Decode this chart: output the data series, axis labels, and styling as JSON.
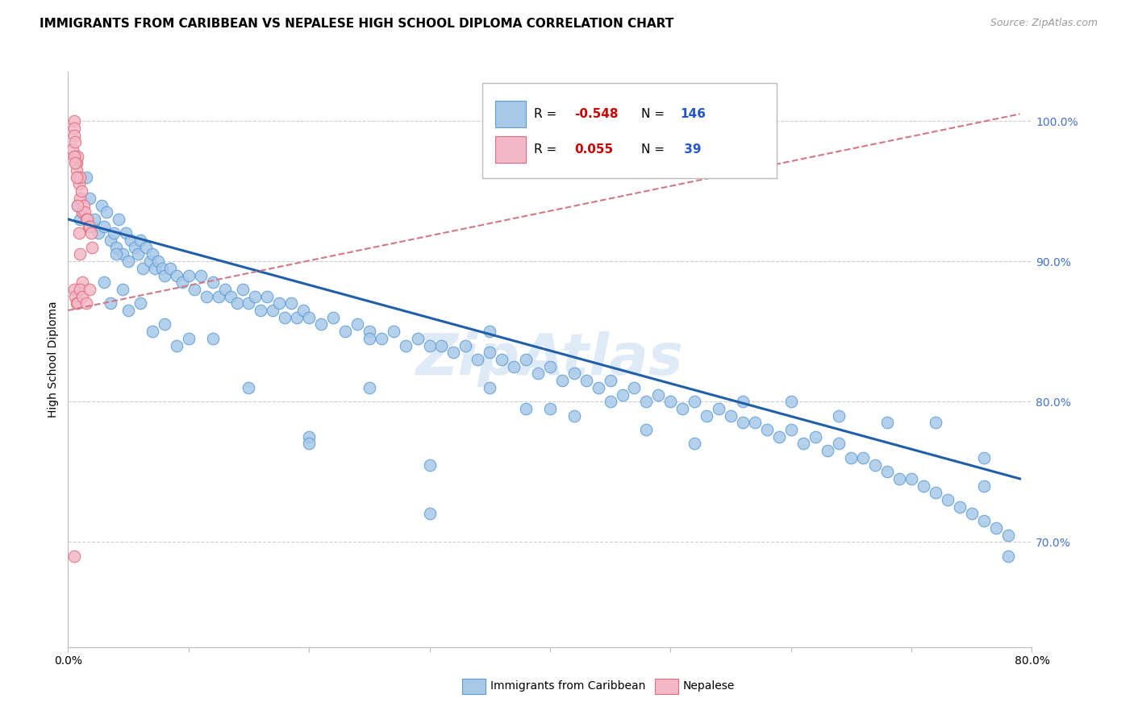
{
  "title": "IMMIGRANTS FROM CARIBBEAN VS NEPALESE HIGH SCHOOL DIPLOMA CORRELATION CHART",
  "source": "Source: ZipAtlas.com",
  "ylabel": "High School Diploma",
  "right_yticks": [
    70.0,
    80.0,
    90.0,
    100.0
  ],
  "xlim": [
    0.0,
    0.8
  ],
  "ylim": [
    0.625,
    1.035
  ],
  "caribbean_color": "#a8c8e8",
  "caribbean_edge": "#5b9bd5",
  "nepalese_color": "#f4b8c8",
  "nepalese_edge": "#e06878",
  "trendline_caribbean_color": "#1f5faa",
  "trendline_nepalese_color": "#d07888",
  "watermark_color": "#c8ddf0",
  "title_fontsize": 11,
  "axis_tick_fontsize": 10,
  "right_tick_color": "#4472c4",
  "grid_color": "#cccccc",
  "caribbean_x": [
    0.008,
    0.01,
    0.012,
    0.015,
    0.018,
    0.02,
    0.022,
    0.025,
    0.028,
    0.03,
    0.032,
    0.035,
    0.038,
    0.04,
    0.042,
    0.045,
    0.048,
    0.05,
    0.052,
    0.055,
    0.058,
    0.06,
    0.062,
    0.065,
    0.068,
    0.07,
    0.072,
    0.075,
    0.078,
    0.08,
    0.085,
    0.09,
    0.095,
    0.1,
    0.105,
    0.11,
    0.115,
    0.12,
    0.125,
    0.13,
    0.135,
    0.14,
    0.145,
    0.15,
    0.155,
    0.16,
    0.165,
    0.17,
    0.175,
    0.18,
    0.185,
    0.19,
    0.195,
    0.2,
    0.21,
    0.22,
    0.23,
    0.24,
    0.25,
    0.26,
    0.27,
    0.28,
    0.29,
    0.3,
    0.31,
    0.32,
    0.33,
    0.34,
    0.35,
    0.36,
    0.37,
    0.38,
    0.39,
    0.4,
    0.41,
    0.42,
    0.43,
    0.44,
    0.45,
    0.46,
    0.47,
    0.48,
    0.49,
    0.5,
    0.51,
    0.52,
    0.53,
    0.54,
    0.55,
    0.56,
    0.57,
    0.58,
    0.59,
    0.6,
    0.61,
    0.62,
    0.63,
    0.64,
    0.65,
    0.66,
    0.67,
    0.68,
    0.69,
    0.7,
    0.71,
    0.72,
    0.73,
    0.74,
    0.75,
    0.76,
    0.77,
    0.78,
    0.03,
    0.035,
    0.04,
    0.045,
    0.05,
    0.06,
    0.07,
    0.08,
    0.09,
    0.1,
    0.12,
    0.15,
    0.2,
    0.25,
    0.3,
    0.35,
    0.4,
    0.45,
    0.3,
    0.25,
    0.2,
    0.35,
    0.38,
    0.42,
    0.48,
    0.52,
    0.56,
    0.6,
    0.64,
    0.68,
    0.72,
    0.76,
    0.78,
    0.76
  ],
  "caribbean_y": [
    0.94,
    0.93,
    0.935,
    0.96,
    0.945,
    0.925,
    0.93,
    0.92,
    0.94,
    0.925,
    0.935,
    0.915,
    0.92,
    0.91,
    0.93,
    0.905,
    0.92,
    0.9,
    0.915,
    0.91,
    0.905,
    0.915,
    0.895,
    0.91,
    0.9,
    0.905,
    0.895,
    0.9,
    0.895,
    0.89,
    0.895,
    0.89,
    0.885,
    0.89,
    0.88,
    0.89,
    0.875,
    0.885,
    0.875,
    0.88,
    0.875,
    0.87,
    0.88,
    0.87,
    0.875,
    0.865,
    0.875,
    0.865,
    0.87,
    0.86,
    0.87,
    0.86,
    0.865,
    0.86,
    0.855,
    0.86,
    0.85,
    0.855,
    0.85,
    0.845,
    0.85,
    0.84,
    0.845,
    0.84,
    0.84,
    0.835,
    0.84,
    0.83,
    0.835,
    0.83,
    0.825,
    0.83,
    0.82,
    0.825,
    0.815,
    0.82,
    0.815,
    0.81,
    0.815,
    0.805,
    0.81,
    0.8,
    0.805,
    0.8,
    0.795,
    0.8,
    0.79,
    0.795,
    0.79,
    0.785,
    0.785,
    0.78,
    0.775,
    0.78,
    0.77,
    0.775,
    0.765,
    0.77,
    0.76,
    0.76,
    0.755,
    0.75,
    0.745,
    0.745,
    0.74,
    0.735,
    0.73,
    0.725,
    0.72,
    0.715,
    0.71,
    0.705,
    0.885,
    0.87,
    0.905,
    0.88,
    0.865,
    0.87,
    0.85,
    0.855,
    0.84,
    0.845,
    0.845,
    0.81,
    0.775,
    0.845,
    0.755,
    0.85,
    0.795,
    0.8,
    0.72,
    0.81,
    0.77,
    0.81,
    0.795,
    0.79,
    0.78,
    0.77,
    0.8,
    0.8,
    0.79,
    0.785,
    0.785,
    0.76,
    0.69,
    0.74
  ],
  "nepalese_x": [
    0.004,
    0.005,
    0.005,
    0.005,
    0.006,
    0.006,
    0.007,
    0.007,
    0.008,
    0.008,
    0.009,
    0.01,
    0.01,
    0.011,
    0.012,
    0.013,
    0.014,
    0.015,
    0.016,
    0.017,
    0.018,
    0.019,
    0.02,
    0.005,
    0.006,
    0.007,
    0.008,
    0.009,
    0.01,
    0.012,
    0.005,
    0.006,
    0.007,
    0.008,
    0.01,
    0.012,
    0.015,
    0.018,
    0.005
  ],
  "nepalese_y": [
    0.98,
    1.0,
    0.995,
    0.99,
    0.975,
    0.985,
    0.97,
    0.965,
    0.96,
    0.975,
    0.955,
    0.96,
    0.945,
    0.95,
    0.935,
    0.94,
    0.935,
    0.93,
    0.93,
    0.925,
    0.925,
    0.92,
    0.91,
    0.975,
    0.97,
    0.96,
    0.94,
    0.92,
    0.905,
    0.885,
    0.88,
    0.875,
    0.87,
    0.87,
    0.88,
    0.875,
    0.87,
    0.88,
    0.69
  ]
}
